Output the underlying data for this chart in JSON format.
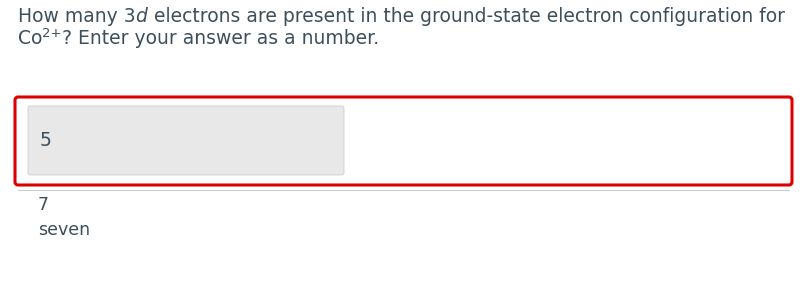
{
  "bg_color": "#ffffff",
  "font_color": "#3d4f5c",
  "input_bg": "#e8e8e8",
  "input_border": "#c8c8c8",
  "box_border_color": "#dd0000",
  "separator_color": "#cccccc",
  "font_size_question": 13.5,
  "font_size_answer": 12.5,
  "font_size_input": 13.5,
  "input_value": "5",
  "other_answers": [
    "7",
    "seven"
  ],
  "q1_part1": "How many 3",
  "q1_italic": "d",
  "q1_part2": " electrons are present in the ground-state electron configuration for",
  "q2_pre": "Co",
  "q2_sup": "2+",
  "q2_post": "? Enter your answer as a number."
}
